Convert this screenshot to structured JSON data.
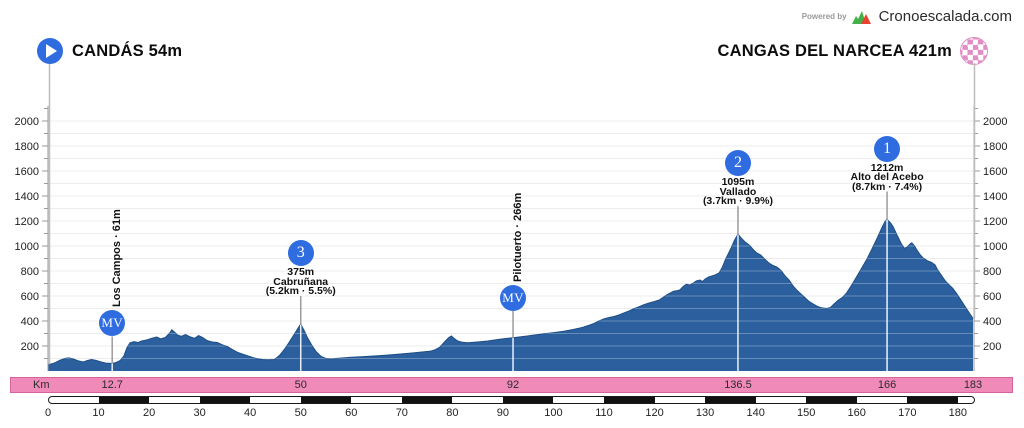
{
  "branding": {
    "powered_by": "Powered by",
    "brand": "Cronoescalada.com"
  },
  "header": {
    "start_label": "CANDÁS 54m",
    "finish_label": "CANGAS DEL NARCEA 421m"
  },
  "km_bar": {
    "label": "Km",
    "values": [
      {
        "km": 12.7,
        "text": "12.7"
      },
      {
        "km": 50,
        "text": "50"
      },
      {
        "km": 92,
        "text": "92"
      },
      {
        "km": 136.5,
        "text": "136.5"
      },
      {
        "km": 166,
        "text": "166"
      },
      {
        "km": 183,
        "text": "183"
      }
    ]
  },
  "colors": {
    "profile_fill": "#2b5f9e",
    "profile_edge": "#1e4e85",
    "badge_blue": "#2e6ce0",
    "km_bar_fill": "#ef8ab9",
    "km_bar_border": "#d6639f",
    "checker_pink": "#e08fc4",
    "logo_green": "#43b049",
    "logo_red": "#e8432e",
    "grid": "#ececec",
    "axis": "#9a9a9a",
    "marker_line": "#9b9b9b"
  },
  "chart_data": {
    "type": "area",
    "xlabel": "Km",
    "ylabel": "",
    "xlim": [
      0,
      183
    ],
    "ylim": [
      0,
      2120
    ],
    "grid": true,
    "x_ticks": [
      0,
      10,
      20,
      30,
      40,
      50,
      60,
      70,
      80,
      90,
      100,
      110,
      120,
      130,
      140,
      150,
      160,
      170,
      180
    ],
    "y_tick_labels": [
      200,
      400,
      600,
      800,
      1000,
      1200,
      1400,
      1600,
      1800,
      2000
    ],
    "y_minor_tick_step": 100,
    "start": {
      "name": "CANDÁS",
      "km": 0,
      "elevation_m": 54
    },
    "finish": {
      "name": "CANGAS DEL NARCEA",
      "km": 183,
      "elevation_m": 421
    },
    "markers": [
      {
        "type": "mv",
        "km": 12.7,
        "elevation_m": 61,
        "badge": "MV",
        "name": "Los Campos",
        "label": "Los Campos · 61m"
      },
      {
        "type": "climb",
        "category": "3",
        "km": 50,
        "elevation_m": 375,
        "altitude_label": "375m",
        "name": "Cabruñana",
        "detail": "(5.2km · 5.5%)"
      },
      {
        "type": "mv",
        "km": 92,
        "elevation_m": 266,
        "badge": "MV",
        "name": "Pilotuerto",
        "label": "Pilotuerto · 266m"
      },
      {
        "type": "climb",
        "category": "2",
        "km": 136.5,
        "elevation_m": 1095,
        "altitude_label": "1095m",
        "name": "Vallado",
        "detail": "(3.7km · 9.9%)"
      },
      {
        "type": "climb",
        "category": "1",
        "km": 166,
        "elevation_m": 1212,
        "altitude_label": "1212m",
        "name": "Alto del Acebo",
        "detail": "(8.7km · 7.4%)"
      }
    ],
    "profile": [
      [
        0,
        54
      ],
      [
        0.8,
        58
      ],
      [
        1.5,
        68
      ],
      [
        2.5,
        88
      ],
      [
        3.5,
        102
      ],
      [
        4.2,
        105
      ],
      [
        5,
        96
      ],
      [
        6,
        82
      ],
      [
        7,
        72
      ],
      [
        7.8,
        84
      ],
      [
        8.6,
        92
      ],
      [
        9.5,
        86
      ],
      [
        10.5,
        72
      ],
      [
        11.5,
        63
      ],
      [
        12.7,
        61
      ],
      [
        13.5,
        68
      ],
      [
        14.3,
        85
      ],
      [
        15,
        120
      ],
      [
        15.6,
        185
      ],
      [
        16.2,
        225
      ],
      [
        17,
        235
      ],
      [
        17.8,
        228
      ],
      [
        18.6,
        242
      ],
      [
        19.5,
        248
      ],
      [
        20.5,
        262
      ],
      [
        21.5,
        272
      ],
      [
        22.3,
        258
      ],
      [
        23.2,
        268
      ],
      [
        24,
        300
      ],
      [
        24.5,
        330
      ],
      [
        25,
        312
      ],
      [
        25.6,
        288
      ],
      [
        26.4,
        278
      ],
      [
        27.2,
        292
      ],
      [
        28,
        275
      ],
      [
        29,
        262
      ],
      [
        29.8,
        283
      ],
      [
        30.6,
        268
      ],
      [
        31.5,
        243
      ],
      [
        32.5,
        232
      ],
      [
        33.5,
        228
      ],
      [
        34.5,
        210
      ],
      [
        35.5,
        195
      ],
      [
        36.5,
        172
      ],
      [
        37.5,
        150
      ],
      [
        38.5,
        135
      ],
      [
        39.5,
        122
      ],
      [
        40.5,
        108
      ],
      [
        41.5,
        97
      ],
      [
        42.5,
        92
      ],
      [
        43.5,
        90
      ],
      [
        44.8,
        92
      ],
      [
        45.8,
        125
      ],
      [
        46.8,
        175
      ],
      [
        47.8,
        235
      ],
      [
        48.8,
        300
      ],
      [
        49.5,
        345
      ],
      [
        50,
        375
      ],
      [
        50.6,
        330
      ],
      [
        51.4,
        262
      ],
      [
        52.2,
        205
      ],
      [
        53,
        158
      ],
      [
        54,
        118
      ],
      [
        55,
        100
      ],
      [
        56,
        96
      ],
      [
        57,
        100
      ],
      [
        58,
        104
      ],
      [
        59,
        107
      ],
      [
        60,
        110
      ],
      [
        62,
        114
      ],
      [
        64,
        119
      ],
      [
        66,
        124
      ],
      [
        68,
        130
      ],
      [
        70,
        137
      ],
      [
        72,
        144
      ],
      [
        74,
        152
      ],
      [
        75.5,
        158
      ],
      [
        76.5,
        168
      ],
      [
        77.5,
        190
      ],
      [
        78.5,
        235
      ],
      [
        79.3,
        268
      ],
      [
        79.8,
        280
      ],
      [
        80.3,
        262
      ],
      [
        81,
        242
      ],
      [
        82,
        230
      ],
      [
        83,
        226
      ],
      [
        84,
        229
      ],
      [
        85,
        232
      ],
      [
        86,
        236
      ],
      [
        87,
        240
      ],
      [
        88,
        246
      ],
      [
        89,
        252
      ],
      [
        90,
        257
      ],
      [
        91,
        262
      ],
      [
        92,
        266
      ],
      [
        93,
        271
      ],
      [
        94,
        276
      ],
      [
        95,
        281
      ],
      [
        96,
        287
      ],
      [
        97,
        292
      ],
      [
        98,
        297
      ],
      [
        99,
        302
      ],
      [
        100,
        307
      ],
      [
        101,
        312
      ],
      [
        102,
        318
      ],
      [
        103,
        325
      ],
      [
        104,
        333
      ],
      [
        105,
        342
      ],
      [
        106,
        352
      ],
      [
        107,
        365
      ],
      [
        108,
        380
      ],
      [
        109,
        400
      ],
      [
        110,
        418
      ],
      [
        111,
        428
      ],
      [
        112,
        436
      ],
      [
        113,
        450
      ],
      [
        114,
        466
      ],
      [
        115,
        482
      ],
      [
        116,
        500
      ],
      [
        117,
        515
      ],
      [
        118,
        532
      ],
      [
        119,
        545
      ],
      [
        120,
        556
      ],
      [
        121,
        570
      ],
      [
        122,
        598
      ],
      [
        122.5,
        612
      ],
      [
        123,
        622
      ],
      [
        123.7,
        638
      ],
      [
        124.3,
        642
      ],
      [
        125,
        648
      ],
      [
        125.7,
        678
      ],
      [
        126.3,
        694
      ],
      [
        127,
        688
      ],
      [
        127.7,
        705
      ],
      [
        128.3,
        722
      ],
      [
        129,
        728
      ],
      [
        129.5,
        716
      ],
      [
        130,
        736
      ],
      [
        130.7,
        752
      ],
      [
        131.4,
        762
      ],
      [
        132,
        770
      ],
      [
        132.8,
        786
      ],
      [
        133.4,
        830
      ],
      [
        134,
        890
      ],
      [
        134.6,
        940
      ],
      [
        135.2,
        990
      ],
      [
        135.8,
        1045
      ],
      [
        136.5,
        1095
      ],
      [
        137.2,
        1062
      ],
      [
        138,
        1030
      ],
      [
        138.8,
        1005
      ],
      [
        139.5,
        972
      ],
      [
        140.2,
        945
      ],
      [
        141,
        928
      ],
      [
        141.8,
        895
      ],
      [
        142.6,
        865
      ],
      [
        143.4,
        845
      ],
      [
        144.2,
        832
      ],
      [
        145,
        805
      ],
      [
        145.8,
        762
      ],
      [
        146.6,
        728
      ],
      [
        147.4,
        680
      ],
      [
        148.2,
        645
      ],
      [
        149,
        615
      ],
      [
        149.8,
        585
      ],
      [
        150.6,
        555
      ],
      [
        151.4,
        535
      ],
      [
        152.2,
        518
      ],
      [
        153,
        506
      ],
      [
        154,
        500
      ],
      [
        154.8,
        508
      ],
      [
        155.6,
        540
      ],
      [
        156.4,
        568
      ],
      [
        157.2,
        590
      ],
      [
        158,
        625
      ],
      [
        159,
        688
      ],
      [
        160,
        755
      ],
      [
        161,
        825
      ],
      [
        162,
        895
      ],
      [
        163,
        975
      ],
      [
        164,
        1060
      ],
      [
        165,
        1148
      ],
      [
        165.6,
        1195
      ],
      [
        166,
        1212
      ],
      [
        166.6,
        1190
      ],
      [
        167.2,
        1155
      ],
      [
        168,
        1085
      ],
      [
        168.8,
        1020
      ],
      [
        169.4,
        982
      ],
      [
        170,
        992
      ],
      [
        170.5,
        1015
      ],
      [
        170.9,
        1026
      ],
      [
        171.4,
        1002
      ],
      [
        172,
        962
      ],
      [
        172.6,
        928
      ],
      [
        173.2,
        902
      ],
      [
        174,
        882
      ],
      [
        174.8,
        868
      ],
      [
        175.5,
        848
      ],
      [
        176,
        810
      ],
      [
        176.7,
        768
      ],
      [
        177.5,
        722
      ],
      [
        178.3,
        688
      ],
      [
        179,
        662
      ],
      [
        179.8,
        618
      ],
      [
        180.6,
        568
      ],
      [
        181.4,
        518
      ],
      [
        182.2,
        468
      ],
      [
        183,
        421
      ]
    ]
  }
}
